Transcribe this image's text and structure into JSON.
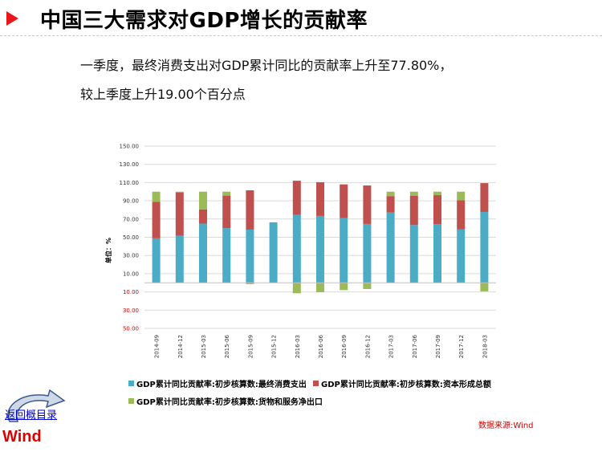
{
  "header": {
    "title": "中国三大需求对GDP增长的贡献率",
    "summary_line1": "一季度，最终消费支出对GDP累计同比的贡献率上升至77.80%，",
    "summary_line2": "较上季度上升19.00个百分点"
  },
  "chart_data": {
    "type": "bar",
    "stacked": true,
    "ylabel": "单位：%",
    "ylim": [
      -50,
      150
    ],
    "yticks": [
      {
        "value": 150,
        "label": "150.00"
      },
      {
        "value": 130,
        "label": "130.00"
      },
      {
        "value": 110,
        "label": "110.00"
      },
      {
        "value": 90,
        "label": "90.00"
      },
      {
        "value": 70,
        "label": "70.00"
      },
      {
        "value": 50,
        "label": "50.00"
      },
      {
        "value": 30,
        "label": "30.00"
      },
      {
        "value": 10,
        "label": "10.00"
      },
      {
        "value": -10,
        "label": "10.00"
      },
      {
        "value": -30,
        "label": "30.00"
      },
      {
        "value": -50,
        "label": "50.00"
      }
    ],
    "categories": [
      "2014-09",
      "2014-12",
      "2015-03",
      "2015-06",
      "2015-09",
      "2015-12",
      "2016-03",
      "2016-06",
      "2016-09",
      "2016-12",
      "2017-03",
      "2017-06",
      "2017-09",
      "2017-12",
      "2018-03"
    ],
    "series": [
      {
        "name": "GDP累计同比贡献率:初步核算数:最终消费支出",
        "color": "#4bacc6",
        "values": [
          48.8,
          51.6,
          65.0,
          60.0,
          58.4,
          66.4,
          74.5,
          73.4,
          71.0,
          64.6,
          77.2,
          63.4,
          64.5,
          58.8,
          77.8
        ]
      },
      {
        "name": "GDP累计同比贡献率:初步核算数:资本形成总额",
        "color": "#c0504d",
        "values": [
          40.0,
          47.6,
          15.5,
          35.7,
          43.1,
          0,
          37.5,
          37.0,
          37.0,
          42.2,
          18.0,
          32.0,
          31.7,
          31.8,
          31.6
        ]
      },
      {
        "name": "GDP累计同比贡献率:初步核算数:货物和服务净出口",
        "color": "#9bbb59",
        "values": [
          11.2,
          0.8,
          19.5,
          4.3,
          -1.5,
          0,
          -11.5,
          -10.4,
          -8.0,
          -6.8,
          4.8,
          4.6,
          3.8,
          9.4,
          -9.4
        ]
      }
    ],
    "grid": true,
    "legend_position": "bottom"
  },
  "footer": {
    "source": "数据来源:Wind",
    "back_link": "返回概目录",
    "logo_text": "Wind"
  },
  "colors": {
    "title_arrow": "#e8151b",
    "source_text": "#cc0000",
    "negative_ticks": "#cc0000"
  }
}
